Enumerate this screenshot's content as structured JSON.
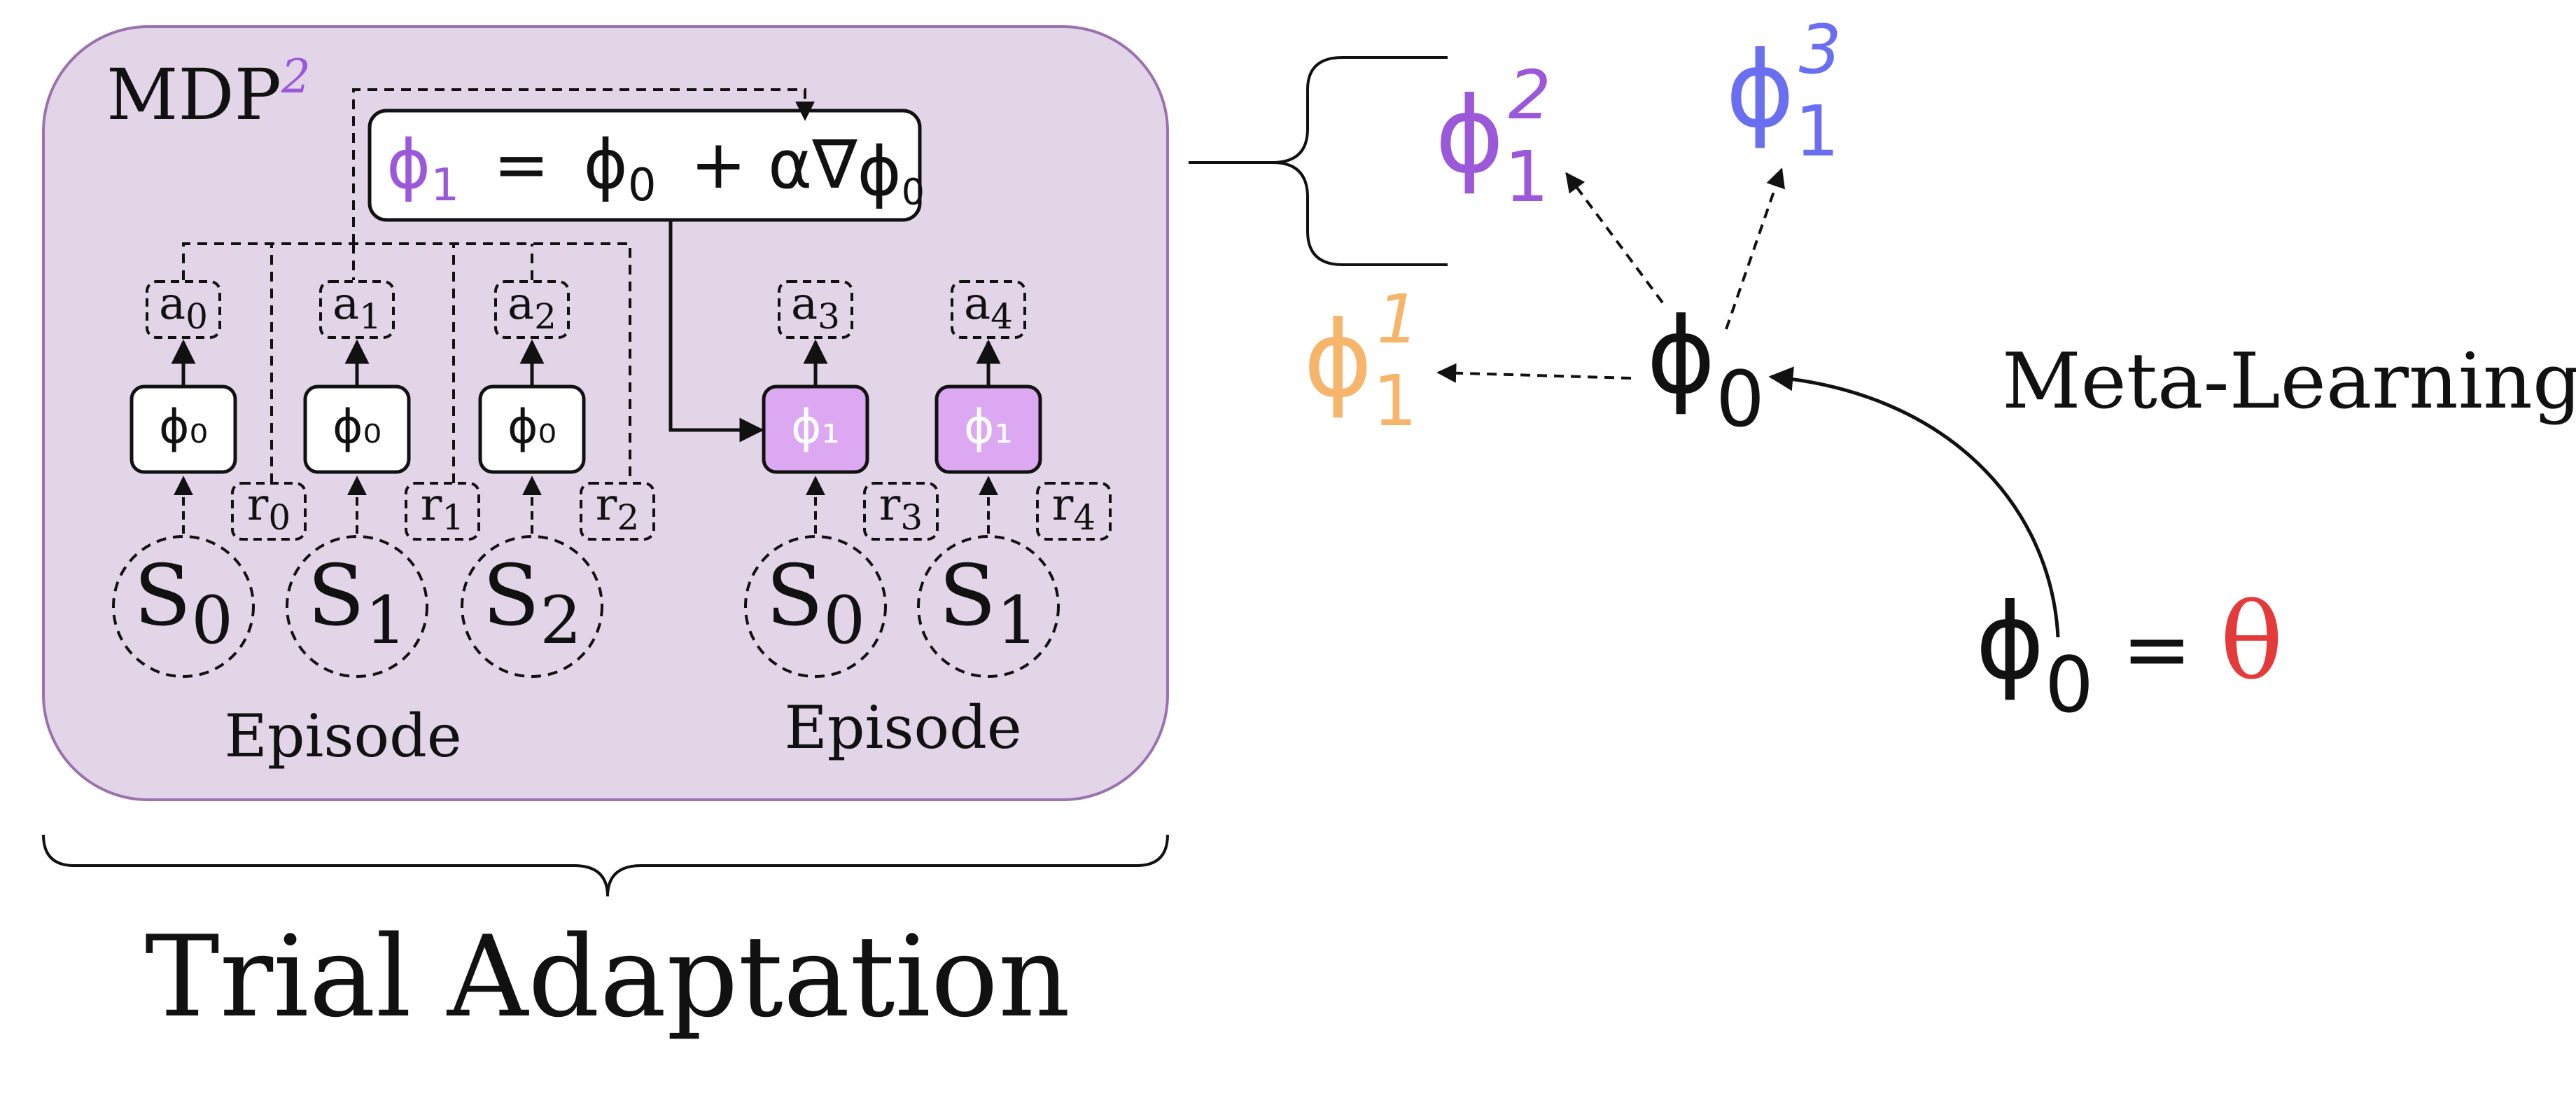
{
  "colors": {
    "panel_fill": "#e3d5e8",
    "panel_stroke": "#9a72ad",
    "phi1_node_fill": "#dca8f1",
    "purple": "#9b59d9",
    "blue": "#6a6ff2",
    "orange": "#f6b56a",
    "red": "#e53a3a",
    "ink": "#111111"
  },
  "mdp": {
    "base": "MDP",
    "superscript": "2"
  },
  "update_rule": {
    "lhs_symbol": "ϕ",
    "lhs_sub": "1",
    "op_eq": "=",
    "rhs_symbol": "ϕ",
    "rhs_sub": "0",
    "op_plus": "+ α∇",
    "grad_symbol": "ϕ",
    "grad_sub": "0"
  },
  "episode1": {
    "label": "Episode",
    "states": [
      {
        "symbol": "S",
        "sub": "0"
      },
      {
        "symbol": "S",
        "sub": "1"
      },
      {
        "symbol": "S",
        "sub": "2"
      }
    ],
    "policies": [
      "ϕ₀",
      "ϕ₀",
      "ϕ₀"
    ],
    "actions": [
      {
        "symbol": "a",
        "sub": "0"
      },
      {
        "symbol": "a",
        "sub": "1"
      },
      {
        "symbol": "a",
        "sub": "2"
      }
    ],
    "rewards": [
      {
        "symbol": "r",
        "sub": "0"
      },
      {
        "symbol": "r",
        "sub": "1"
      },
      {
        "symbol": "r",
        "sub": "2"
      }
    ]
  },
  "episode2": {
    "label": "Episode",
    "states": [
      {
        "symbol": "S",
        "sub": "0"
      },
      {
        "symbol": "S",
        "sub": "1"
      }
    ],
    "policies": [
      "ϕ₁",
      "ϕ₁"
    ],
    "actions": [
      {
        "symbol": "a",
        "sub": "3"
      },
      {
        "symbol": "a",
        "sub": "4"
      }
    ],
    "rewards": [
      {
        "symbol": "r",
        "sub": "3"
      },
      {
        "symbol": "r",
        "sub": "4"
      }
    ]
  },
  "trial_adaptation": "Trial Adaptation",
  "meta": {
    "label": "Meta-Learning",
    "phi1_task1": {
      "symbol": "ϕ",
      "sub": "1",
      "sup": "1"
    },
    "phi1_task2": {
      "symbol": "ϕ",
      "sub": "1",
      "sup": "2"
    },
    "phi1_task3": {
      "symbol": "ϕ",
      "sub": "1",
      "sup": "3"
    },
    "phi0_center": {
      "symbol": "ϕ",
      "sub": "0"
    },
    "init": {
      "symbol": "ϕ",
      "sub": "0",
      "eq": "=",
      "theta": "θ"
    }
  }
}
